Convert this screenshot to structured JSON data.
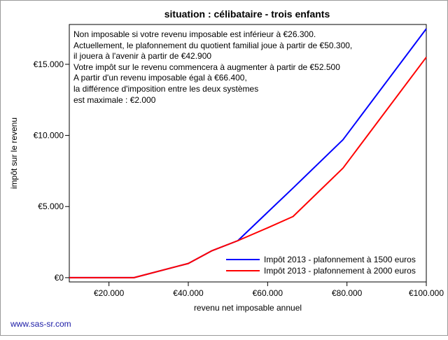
{
  "chart_data": {
    "type": "line",
    "title": "situation : célibataire - trois enfants",
    "xlabel": "revenu net imposable annuel",
    "ylabel": "impôt sur le revenu",
    "xlim": [
      10000,
      100000
    ],
    "ylim": [
      -300,
      17800
    ],
    "x_ticks": [
      {
        "value": 20000,
        "label": "€20.000"
      },
      {
        "value": 40000,
        "label": "€40.000"
      },
      {
        "value": 60000,
        "label": "€60.000"
      },
      {
        "value": 80000,
        "label": "€80.000"
      },
      {
        "value": 100000,
        "label": "€100.000"
      }
    ],
    "y_ticks": [
      {
        "value": 0,
        "label": "€0"
      },
      {
        "value": 5000,
        "label": "€5.000"
      },
      {
        "value": 10000,
        "label": "€10.000"
      },
      {
        "value": 15000,
        "label": "€15.000"
      }
    ],
    "series": [
      {
        "name": "Impôt 2013 - plafonnement à 1500 euros",
        "color": "#0000ff",
        "points": [
          [
            10000,
            0
          ],
          [
            26300,
            0
          ],
          [
            40000,
            1000
          ],
          [
            46000,
            1900
          ],
          [
            52500,
            2600
          ],
          [
            60000,
            4600
          ],
          [
            66400,
            6300
          ],
          [
            79000,
            9700
          ],
          [
            100000,
            17500
          ]
        ]
      },
      {
        "name": "Impôt 2013 - plafonnement à 2000 euros",
        "color": "#ff0000",
        "points": [
          [
            10000,
            0
          ],
          [
            26300,
            0
          ],
          [
            40000,
            1000
          ],
          [
            46000,
            1900
          ],
          [
            52500,
            2600
          ],
          [
            60000,
            3500
          ],
          [
            66400,
            4300
          ],
          [
            79000,
            7700
          ],
          [
            100000,
            15500
          ]
        ]
      }
    ],
    "annotation_lines": [
      "Non imposable si votre revenu imposable est inférieur à €26.300.",
      "Actuellement, le plafonnement du quotient familial joue à partir de €50.300,",
      "il jouera à l'avenir à partir de €42.900",
      "Votre impôt sur le revenu commencera à augmenter à partir de €52.500",
      "A partir d'un revenu imposable égal à €66.400,",
      "la différence d'imposition entre les deux systèmes",
      "est maximale : €2.000"
    ],
    "legend_position": "bottom-right",
    "grid": false
  },
  "footer": {
    "link_text": "www.sas-sr.com"
  }
}
